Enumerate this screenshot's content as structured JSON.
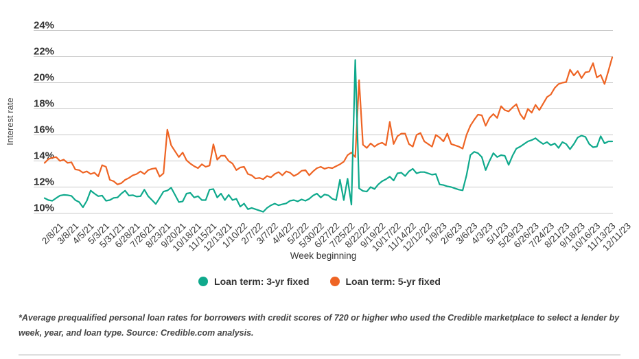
{
  "chart_data": {
    "type": "line",
    "xlabel": "Week beginning",
    "ylabel": "Interest rate",
    "x_frequency": "weekly",
    "x_ticks_every": 4,
    "grid": "horizontal",
    "legend_position": "bottom",
    "x_tick_labels": [
      "2/8/21",
      "3/8/21",
      "4/5/21",
      "5/3/21",
      "5/31/21",
      "6/28/21",
      "7/26/21",
      "8/23/21",
      "9/20/21",
      "10/18/21",
      "11/15/21",
      "12/13/21",
      "1/10/22",
      "2/7/22",
      "3/7/22",
      "4/4/22",
      "5/2/22",
      "5/30/22",
      "6/27/22",
      "7/25/22",
      "8/22/22",
      "9/19/22",
      "10/17/22",
      "11/14/22",
      "12/12/22",
      "1/9/23",
      "2/6/23",
      "3/6/23",
      "4/3/23",
      "5/1/23",
      "5/29/23",
      "6/26/23",
      "7/24/23",
      "8/21/23",
      "9/18/23",
      "10/16/23",
      "11/13/23",
      "12/11/23"
    ],
    "y_ticks": [
      {
        "label": "24%",
        "value": 24
      },
      {
        "label": "22%",
        "value": 22
      },
      {
        "label": "20%",
        "value": 20
      },
      {
        "label": "18%",
        "value": 18
      },
      {
        "label": "16%",
        "value": 16
      },
      {
        "label": "14%",
        "value": 14
      },
      {
        "label": "12%",
        "value": 12
      },
      {
        "label": "10%",
        "value": 10
      }
    ],
    "series": [
      {
        "name": "Loan term: 3-yr fixed",
        "color": "#0fa98c",
        "values": [
          11.15,
          11.0,
          10.95,
          11.15,
          11.35,
          11.4,
          11.38,
          11.32,
          11.0,
          10.85,
          10.45,
          10.95,
          11.73,
          11.5,
          11.3,
          11.35,
          10.95,
          11.0,
          11.17,
          11.2,
          11.5,
          11.72,
          11.35,
          11.38,
          11.27,
          11.3,
          11.8,
          11.3,
          11.0,
          10.7,
          11.17,
          11.65,
          11.73,
          11.95,
          11.4,
          10.85,
          10.9,
          11.5,
          11.55,
          11.2,
          11.3,
          11.0,
          11.0,
          11.8,
          11.85,
          11.2,
          11.5,
          11.0,
          11.4,
          11.0,
          11.1,
          10.5,
          10.73,
          10.3,
          10.4,
          10.3,
          10.2,
          10.1,
          10.4,
          10.6,
          10.73,
          10.6,
          10.68,
          10.75,
          10.95,
          11.0,
          10.9,
          11.05,
          10.95,
          11.1,
          11.35,
          11.5,
          11.2,
          11.43,
          11.36,
          11.1,
          11.0,
          12.56,
          11.0,
          12.64,
          10.65,
          21.75,
          11.9,
          11.7,
          11.65,
          12.0,
          11.85,
          12.2,
          12.45,
          12.6,
          12.8,
          12.5,
          13.05,
          13.1,
          12.85,
          13.2,
          13.4,
          13.05,
          13.15,
          13.15,
          13.05,
          12.95,
          13.0,
          12.2,
          12.15,
          12.05,
          12.0,
          11.9,
          11.8,
          11.75,
          12.9,
          14.45,
          14.7,
          14.6,
          14.3,
          13.3,
          14.0,
          14.6,
          14.3,
          14.45,
          14.4,
          13.7,
          14.4,
          14.95,
          15.1,
          15.3,
          15.5,
          15.6,
          15.75,
          15.5,
          15.3,
          15.45,
          15.2,
          15.35,
          15.0,
          15.45,
          15.3,
          14.9,
          15.3,
          15.8,
          15.95,
          15.85,
          15.3,
          15.05,
          15.1,
          15.9,
          15.35,
          15.5,
          15.5
        ]
      },
      {
        "name": "Loan term: 5-yr fixed",
        "color": "#ee6424",
        "values": [
          13.85,
          14.15,
          14.25,
          14.3,
          14.0,
          14.1,
          13.85,
          13.9,
          13.35,
          13.3,
          13.1,
          13.2,
          13.0,
          13.1,
          12.82,
          13.68,
          13.55,
          12.55,
          12.45,
          12.2,
          12.3,
          12.55,
          12.7,
          12.9,
          13.0,
          13.2,
          13.0,
          13.3,
          13.4,
          13.45,
          12.8,
          13.05,
          16.4,
          15.2,
          14.75,
          14.3,
          14.65,
          14.05,
          13.8,
          13.6,
          13.45,
          13.75,
          13.55,
          13.65,
          15.28,
          14.1,
          14.4,
          14.4,
          14.0,
          13.8,
          13.3,
          13.5,
          13.55,
          13.0,
          12.9,
          12.65,
          12.7,
          12.6,
          12.85,
          12.75,
          13.0,
          13.15,
          12.9,
          13.2,
          13.1,
          12.85,
          13.0,
          13.25,
          13.3,
          12.9,
          13.2,
          13.45,
          13.55,
          13.4,
          13.5,
          13.45,
          13.6,
          13.75,
          13.95,
          14.45,
          14.65,
          14.3,
          20.2,
          15.25,
          15.0,
          15.35,
          15.1,
          15.3,
          15.4,
          15.2,
          17.0,
          15.3,
          15.9,
          16.1,
          16.1,
          15.3,
          15.1,
          16.0,
          16.15,
          15.5,
          15.3,
          15.1,
          16.0,
          15.8,
          15.5,
          16.1,
          15.3,
          15.2,
          15.1,
          14.95,
          16.0,
          16.7,
          17.15,
          17.55,
          17.5,
          16.7,
          17.3,
          17.6,
          17.3,
          18.2,
          17.9,
          17.8,
          18.1,
          18.35,
          17.6,
          17.2,
          18.0,
          17.7,
          18.3,
          17.9,
          18.4,
          18.9,
          19.1,
          19.6,
          19.9,
          20.0,
          20.05,
          21.0,
          20.55,
          20.9,
          20.35,
          20.8,
          20.85,
          21.5,
          20.4,
          20.6,
          19.9,
          20.9,
          21.95
        ]
      }
    ]
  },
  "footnote": "*Average prequalified personal loan rates for borrowers with credit scores of 720 or higher who used the Credible marketplace to select a lender by week, year, and loan type. Source: Credible.com analysis."
}
